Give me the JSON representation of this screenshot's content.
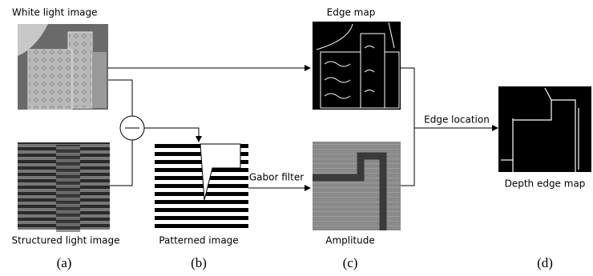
{
  "images": {
    "white_light": "White light image",
    "structured_light": "Structured light image",
    "patterned": "Patterned image",
    "edge_map": "Edge map",
    "amplitude": "Amplitude",
    "depth_edge_map": "Depth edge map"
  },
  "operations": {
    "gabor": "Gabor filter",
    "edge_location": "Edge location"
  },
  "captions": [
    "(a)",
    "(b)",
    "(c)",
    "(d)"
  ]
}
